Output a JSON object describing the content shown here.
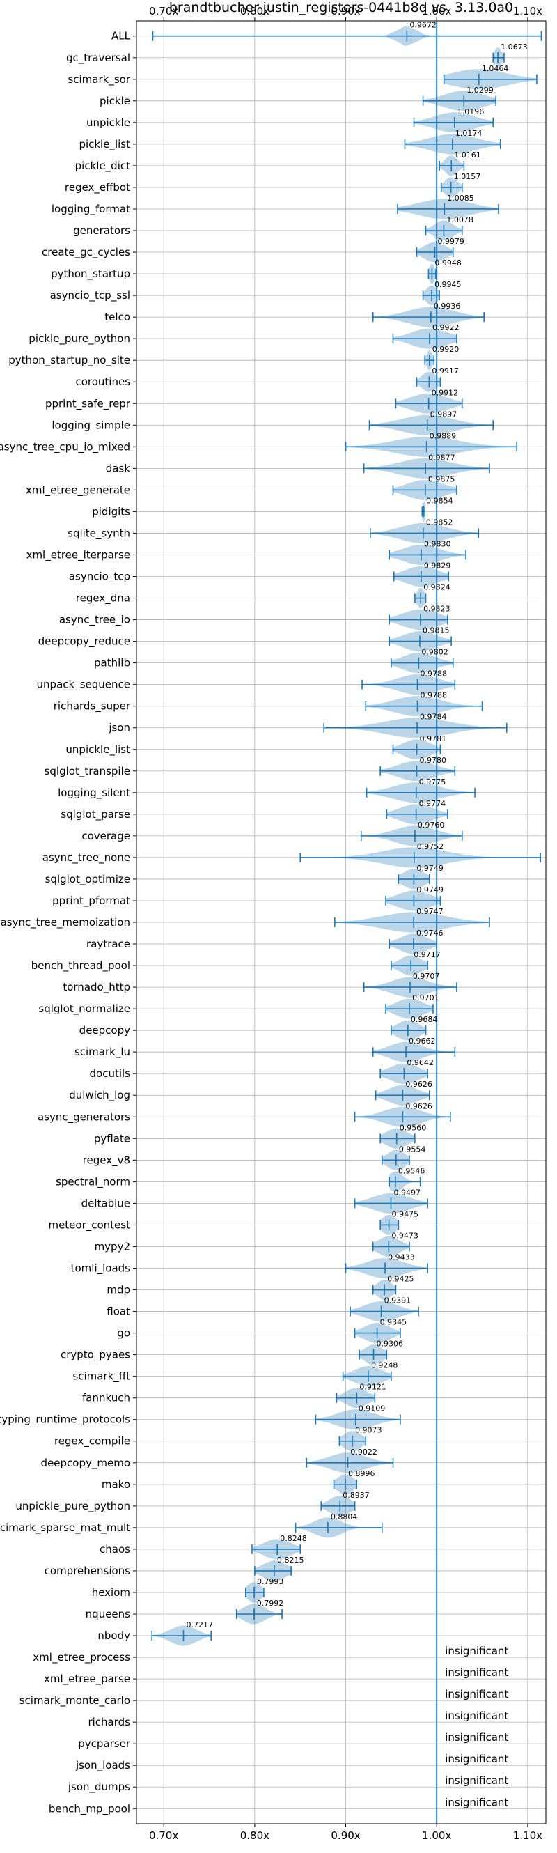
{
  "chart_data": {
    "type": "violin",
    "title": "brandtbucher-justin_registers-0441b8d vs. 3.13.0a0",
    "xlabel": "",
    "ylabel": "",
    "xlim": [
      0.67,
      1.12
    ],
    "x_ticks": [
      0.7,
      0.8,
      0.9,
      1.0,
      1.1
    ],
    "x_tick_labels": [
      "0.70x",
      "0.80x",
      "0.90x",
      "1.00x",
      "1.10x"
    ],
    "reference_line": 1.0,
    "grid": true,
    "colors": {
      "violin": "#1f77b4",
      "line": "#1f77b4"
    },
    "insignificant_text": "insignificant",
    "rows": [
      {
        "name": "ALL",
        "value": 0.9672,
        "label": "0.9672",
        "lo": 0.688,
        "hi": 1.115,
        "spread": 0.01
      },
      {
        "name": "gc_traversal",
        "value": 1.0673,
        "label": "1.0673",
        "lo": 1.062,
        "hi": 1.074,
        "spread": 0.004
      },
      {
        "name": "scimark_sor",
        "value": 1.0464,
        "label": "1.0464",
        "lo": 1.008,
        "hi": 1.11,
        "spread": 0.03
      },
      {
        "name": "pickle",
        "value": 1.0299,
        "label": "1.0299",
        "lo": 0.985,
        "hi": 1.065,
        "spread": 0.022
      },
      {
        "name": "unpickle",
        "value": 1.0196,
        "label": "1.0196",
        "lo": 0.975,
        "hi": 1.062,
        "spread": 0.022
      },
      {
        "name": "pickle_list",
        "value": 1.0174,
        "label": "1.0174",
        "lo": 0.965,
        "hi": 1.07,
        "spread": 0.025
      },
      {
        "name": "pickle_dict",
        "value": 1.0161,
        "label": "1.0161",
        "lo": 1.003,
        "hi": 1.03,
        "spread": 0.007
      },
      {
        "name": "regex_effbot",
        "value": 1.0157,
        "label": "1.0157",
        "lo": 1.005,
        "hi": 1.028,
        "spread": 0.007
      },
      {
        "name": "logging_format",
        "value": 1.0085,
        "label": "1.0085",
        "lo": 0.957,
        "hi": 1.068,
        "spread": 0.028
      },
      {
        "name": "generators",
        "value": 1.0078,
        "label": "1.0078",
        "lo": 0.988,
        "hi": 1.028,
        "spread": 0.01
      },
      {
        "name": "create_gc_cycles",
        "value": 0.9979,
        "label": "0.9979",
        "lo": 0.978,
        "hi": 1.018,
        "spread": 0.012
      },
      {
        "name": "python_startup",
        "value": 0.9948,
        "label": "0.9948",
        "lo": 0.991,
        "hi": 0.999,
        "spread": 0.003
      },
      {
        "name": "asyncio_tcp_ssl",
        "value": 0.9945,
        "label": "0.9945",
        "lo": 0.985,
        "hi": 1.003,
        "spread": 0.006
      },
      {
        "name": "telco",
        "value": 0.9936,
        "label": "0.9936",
        "lo": 0.93,
        "hi": 1.052,
        "spread": 0.025
      },
      {
        "name": "pickle_pure_python",
        "value": 0.9922,
        "label": "0.9922",
        "lo": 0.952,
        "hi": 1.022,
        "spread": 0.02
      },
      {
        "name": "python_startup_no_site",
        "value": 0.992,
        "label": "0.9920",
        "lo": 0.987,
        "hi": 0.997,
        "spread": 0.003
      },
      {
        "name": "coroutines",
        "value": 0.9917,
        "label": "0.9917",
        "lo": 0.978,
        "hi": 1.004,
        "spread": 0.008
      },
      {
        "name": "pprint_safe_repr",
        "value": 0.9912,
        "label": "0.9912",
        "lo": 0.955,
        "hi": 1.028,
        "spread": 0.02
      },
      {
        "name": "logging_simple",
        "value": 0.9897,
        "label": "0.9897",
        "lo": 0.926,
        "hi": 1.062,
        "spread": 0.028
      },
      {
        "name": "async_tree_cpu_io_mixed",
        "value": 0.9889,
        "label": "0.9889",
        "lo": 0.9,
        "hi": 1.088,
        "spread": 0.035
      },
      {
        "name": "dask",
        "value": 0.9877,
        "label": "0.9877",
        "lo": 0.92,
        "hi": 1.058,
        "spread": 0.028
      },
      {
        "name": "xml_etree_generate",
        "value": 0.9875,
        "label": "0.9875",
        "lo": 0.952,
        "hi": 1.022,
        "spread": 0.02
      },
      {
        "name": "pidigits",
        "value": 0.9854,
        "label": "0.9854",
        "lo": 0.984,
        "hi": 0.987,
        "spread": 0.002
      },
      {
        "name": "sqlite_synth",
        "value": 0.9852,
        "label": "0.9852",
        "lo": 0.927,
        "hi": 1.046,
        "spread": 0.025
      },
      {
        "name": "xml_etree_iterparse",
        "value": 0.983,
        "label": "0.9830",
        "lo": 0.948,
        "hi": 1.032,
        "spread": 0.02
      },
      {
        "name": "asyncio_tcp",
        "value": 0.9829,
        "label": "0.9829",
        "lo": 0.953,
        "hi": 1.013,
        "spread": 0.018
      },
      {
        "name": "regex_dna",
        "value": 0.9824,
        "label": "0.9824",
        "lo": 0.976,
        "hi": 0.988,
        "spread": 0.004
      },
      {
        "name": "async_tree_io",
        "value": 0.9823,
        "label": "0.9823",
        "lo": 0.948,
        "hi": 1.012,
        "spread": 0.02
      },
      {
        "name": "deepcopy_reduce",
        "value": 0.9815,
        "label": "0.9815",
        "lo": 0.948,
        "hi": 1.016,
        "spread": 0.018
      },
      {
        "name": "pathlib",
        "value": 0.9802,
        "label": "0.9802",
        "lo": 0.95,
        "hi": 1.018,
        "spread": 0.018
      },
      {
        "name": "unpack_sequence",
        "value": 0.9788,
        "label": "0.9788",
        "lo": 0.918,
        "hi": 1.02,
        "spread": 0.022
      },
      {
        "name": "richards_super",
        "value": 0.9788,
        "label": "0.9788",
        "lo": 0.922,
        "hi": 1.05,
        "spread": 0.025
      },
      {
        "name": "json",
        "value": 0.9784,
        "label": "0.9784",
        "lo": 0.876,
        "hi": 1.077,
        "spread": 0.035
      },
      {
        "name": "unpickle_list",
        "value": 0.9781,
        "label": "0.9781",
        "lo": 0.952,
        "hi": 1.004,
        "spread": 0.015
      },
      {
        "name": "sqlglot_transpile",
        "value": 0.978,
        "label": "0.9780",
        "lo": 0.938,
        "hi": 1.02,
        "spread": 0.02
      },
      {
        "name": "logging_silent",
        "value": 0.9775,
        "label": "0.9775",
        "lo": 0.923,
        "hi": 1.042,
        "spread": 0.025
      },
      {
        "name": "sqlglot_parse",
        "value": 0.9774,
        "label": "0.9774",
        "lo": 0.945,
        "hi": 1.012,
        "spread": 0.018
      },
      {
        "name": "coverage",
        "value": 0.976,
        "label": "0.9760",
        "lo": 0.917,
        "hi": 1.028,
        "spread": 0.022
      },
      {
        "name": "async_tree_none",
        "value": 0.9752,
        "label": "0.9752",
        "lo": 0.85,
        "hi": 1.114,
        "spread": 0.035
      },
      {
        "name": "sqlglot_optimize",
        "value": 0.9749,
        "label": "0.9749",
        "lo": 0.958,
        "hi": 0.992,
        "spread": 0.012
      },
      {
        "name": "pprint_pformat",
        "value": 0.9749,
        "label": "0.9749",
        "lo": 0.944,
        "hi": 1.004,
        "spread": 0.018
      },
      {
        "name": "async_tree_memoization",
        "value": 0.9747,
        "label": "0.9747",
        "lo": 0.888,
        "hi": 1.058,
        "spread": 0.035
      },
      {
        "name": "raytrace",
        "value": 0.9746,
        "label": "0.9746",
        "lo": 0.948,
        "hi": 1.0,
        "spread": 0.015
      },
      {
        "name": "bench_thread_pool",
        "value": 0.9717,
        "label": "0.9717",
        "lo": 0.95,
        "hi": 0.99,
        "spread": 0.012
      },
      {
        "name": "tornado_http",
        "value": 0.9707,
        "label": "0.9707",
        "lo": 0.92,
        "hi": 1.022,
        "spread": 0.02
      },
      {
        "name": "sqlglot_normalize",
        "value": 0.9701,
        "label": "0.9701",
        "lo": 0.944,
        "hi": 0.996,
        "spread": 0.015
      },
      {
        "name": "deepcopy",
        "value": 0.9684,
        "label": "0.9684",
        "lo": 0.95,
        "hi": 0.988,
        "spread": 0.012
      },
      {
        "name": "scimark_lu",
        "value": 0.9662,
        "label": "0.9662",
        "lo": 0.93,
        "hi": 1.02,
        "spread": 0.018
      },
      {
        "name": "docutils",
        "value": 0.9642,
        "label": "0.9642",
        "lo": 0.938,
        "hi": 0.99,
        "spread": 0.016
      },
      {
        "name": "dulwich_log",
        "value": 0.9626,
        "label": "0.9626",
        "lo": 0.933,
        "hi": 0.992,
        "spread": 0.016
      },
      {
        "name": "async_generators",
        "value": 0.9626,
        "label": "0.9626",
        "lo": 0.91,
        "hi": 1.015,
        "spread": 0.02
      },
      {
        "name": "pyflate",
        "value": 0.956,
        "label": "0.9560",
        "lo": 0.938,
        "hi": 0.976,
        "spread": 0.012
      },
      {
        "name": "regex_v8",
        "value": 0.9554,
        "label": "0.9554",
        "lo": 0.94,
        "hi": 0.97,
        "spread": 0.01
      },
      {
        "name": "spectral_norm",
        "value": 0.9546,
        "label": "0.9546",
        "lo": 0.948,
        "hi": 0.982,
        "spread": 0.008
      },
      {
        "name": "deltablue",
        "value": 0.9497,
        "label": "0.9497",
        "lo": 0.91,
        "hi": 0.99,
        "spread": 0.02
      },
      {
        "name": "meteor_contest",
        "value": 0.9475,
        "label": "0.9475",
        "lo": 0.938,
        "hi": 0.958,
        "spread": 0.008
      },
      {
        "name": "mypy2",
        "value": 0.9473,
        "label": "0.9473",
        "lo": 0.93,
        "hi": 0.97,
        "spread": 0.012
      },
      {
        "name": "tomli_loads",
        "value": 0.9433,
        "label": "0.9433",
        "lo": 0.9,
        "hi": 0.99,
        "spread": 0.02
      },
      {
        "name": "mdp",
        "value": 0.9425,
        "label": "0.9425",
        "lo": 0.93,
        "hi": 0.955,
        "spread": 0.008
      },
      {
        "name": "float",
        "value": 0.9391,
        "label": "0.9391",
        "lo": 0.905,
        "hi": 0.98,
        "spread": 0.018
      },
      {
        "name": "go",
        "value": 0.9345,
        "label": "0.9345",
        "lo": 0.91,
        "hi": 0.96,
        "spread": 0.014
      },
      {
        "name": "crypto_pyaes",
        "value": 0.9306,
        "label": "0.9306",
        "lo": 0.915,
        "hi": 0.945,
        "spread": 0.01
      },
      {
        "name": "scimark_fft",
        "value": 0.9248,
        "label": "0.9248",
        "lo": 0.897,
        "hi": 0.95,
        "spread": 0.015
      },
      {
        "name": "fannkuch",
        "value": 0.9121,
        "label": "0.9121",
        "lo": 0.89,
        "hi": 0.932,
        "spread": 0.012
      },
      {
        "name": "typing_runtime_protocols",
        "value": 0.9109,
        "label": "0.9109",
        "lo": 0.867,
        "hi": 0.96,
        "spread": 0.02
      },
      {
        "name": "regex_compile",
        "value": 0.9073,
        "label": "0.9073",
        "lo": 0.893,
        "hi": 0.922,
        "spread": 0.01
      },
      {
        "name": "deepcopy_memo",
        "value": 0.9022,
        "label": "0.9022",
        "lo": 0.857,
        "hi": 0.952,
        "spread": 0.02
      },
      {
        "name": "mako",
        "value": 0.8996,
        "label": "0.8996",
        "lo": 0.887,
        "hi": 0.912,
        "spread": 0.009
      },
      {
        "name": "unpickle_pure_python",
        "value": 0.8937,
        "label": "0.8937",
        "lo": 0.873,
        "hi": 0.91,
        "spread": 0.012
      },
      {
        "name": "scimark_sparse_mat_mult",
        "value": 0.8804,
        "label": "0.8804",
        "lo": 0.845,
        "hi": 0.94,
        "spread": 0.015
      },
      {
        "name": "chaos",
        "value": 0.8248,
        "label": "0.8248",
        "lo": 0.797,
        "hi": 0.85,
        "spread": 0.015
      },
      {
        "name": "comprehensions",
        "value": 0.8215,
        "label": "0.8215",
        "lo": 0.8,
        "hi": 0.84,
        "spread": 0.013
      },
      {
        "name": "hexiom",
        "value": 0.7993,
        "label": "0.7993",
        "lo": 0.79,
        "hi": 0.81,
        "spread": 0.008
      },
      {
        "name": "nqueens",
        "value": 0.7992,
        "label": "0.7992",
        "lo": 0.78,
        "hi": 0.83,
        "spread": 0.012
      },
      {
        "name": "nbody",
        "value": 0.7217,
        "label": "0.7217",
        "lo": 0.687,
        "hi": 0.752,
        "spread": 0.014
      },
      {
        "name": "xml_etree_process",
        "insignificant": true
      },
      {
        "name": "xml_etree_parse",
        "insignificant": true
      },
      {
        "name": "scimark_monte_carlo",
        "insignificant": true
      },
      {
        "name": "richards",
        "insignificant": true
      },
      {
        "name": "pycparser",
        "insignificant": true
      },
      {
        "name": "json_loads",
        "insignificant": true
      },
      {
        "name": "json_dumps",
        "insignificant": true
      },
      {
        "name": "bench_mp_pool",
        "insignificant": true
      }
    ]
  }
}
